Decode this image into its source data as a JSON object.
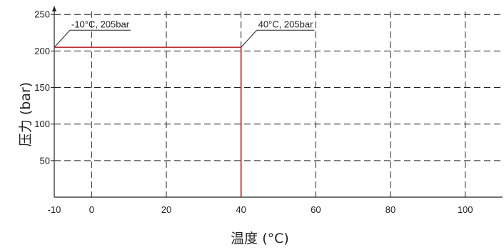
{
  "chart_data": {
    "type": "line",
    "title": "",
    "xlabel": "温度 (°C)",
    "ylabel": "压力 (bar)",
    "xlim": [
      -10,
      110
    ],
    "ylim": [
      0,
      260
    ],
    "x_ticks": [
      -10,
      0,
      20,
      40,
      60,
      80,
      100
    ],
    "y_ticks": [
      50,
      100,
      150,
      200,
      250
    ],
    "grid": true,
    "series": [
      {
        "color": "#c0323a",
        "points": [
          {
            "x": -10,
            "y": 205
          },
          {
            "x": 40,
            "y": 205
          },
          {
            "x": 40,
            "y": 0
          }
        ]
      }
    ],
    "annotations": [
      {
        "text": "-10°C, 205bar",
        "x": -10,
        "y": 205
      },
      {
        "text": "40°C, 205bar",
        "x": 40,
        "y": 205
      }
    ]
  }
}
